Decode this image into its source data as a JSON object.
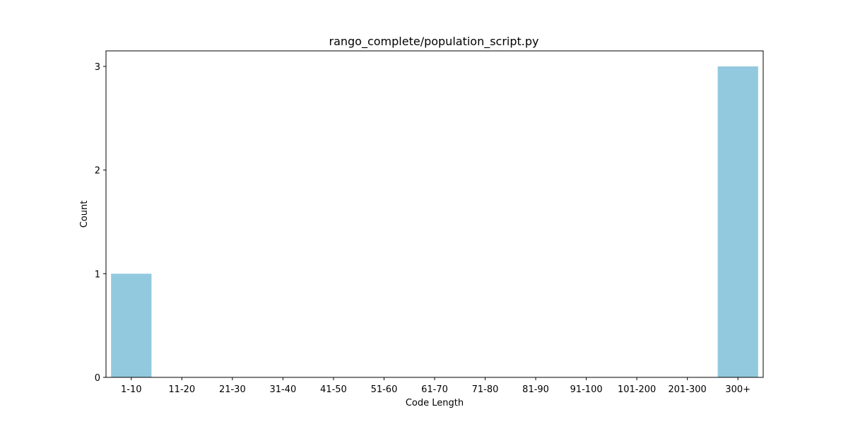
{
  "chart_data": {
    "type": "bar",
    "title": "rango_complete/population_script.py",
    "xlabel": "Code Length",
    "ylabel": "Count",
    "categories": [
      "1-10",
      "11-20",
      "21-30",
      "31-40",
      "41-50",
      "51-60",
      "61-70",
      "71-80",
      "81-90",
      "91-100",
      "101-200",
      "201-300",
      "300+"
    ],
    "values": [
      1,
      0,
      0,
      0,
      0,
      0,
      0,
      0,
      0,
      0,
      0,
      0,
      3
    ],
    "yticks": [
      0,
      1,
      2,
      3
    ],
    "ylim": [
      0,
      3.15
    ],
    "grid": false,
    "legend": "none",
    "bar_color": "#92c9de"
  }
}
